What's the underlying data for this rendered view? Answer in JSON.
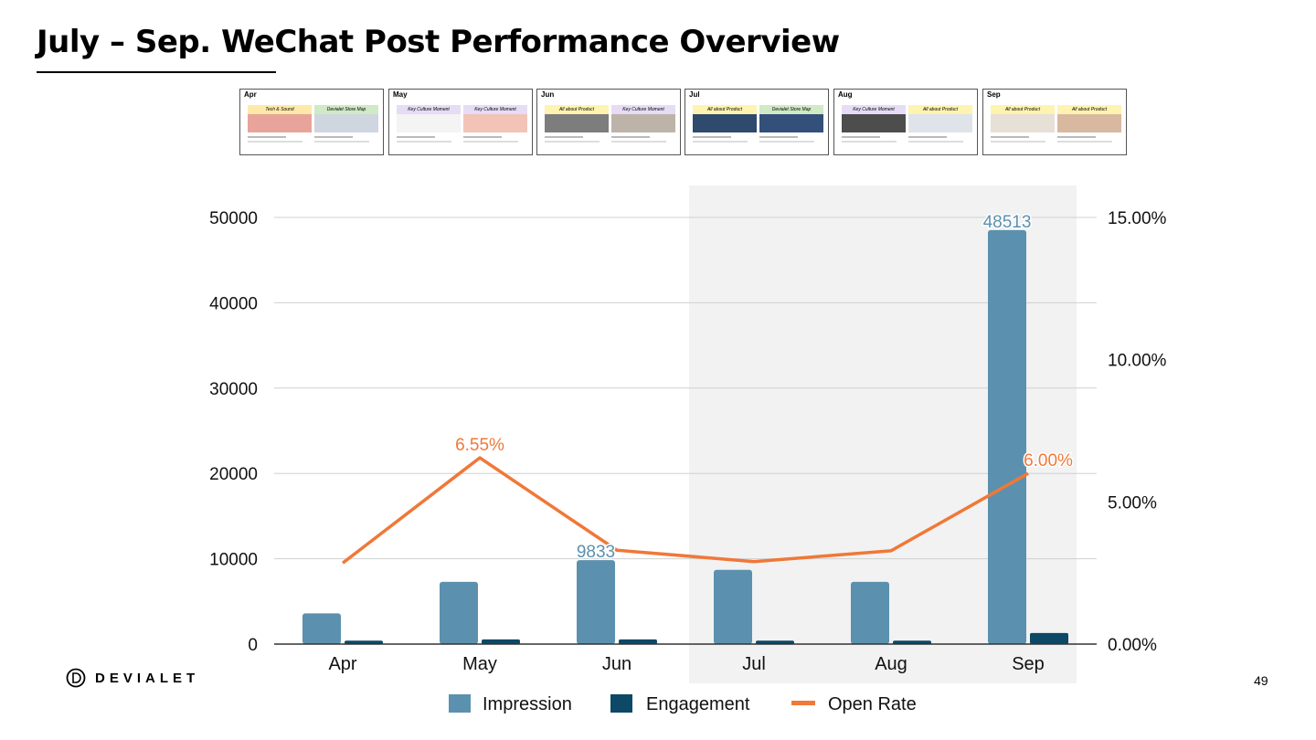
{
  "slide": {
    "title": "July – Sep. WeChat Post Performance Overview",
    "page_number": "49",
    "logo_text": "DEVIALET"
  },
  "thumbnails": [
    {
      "month": "Apr",
      "tags": [
        "Tech & Sound",
        "Devialet Store Map"
      ],
      "tag_colors": [
        "#ffe9a8",
        "#cfeac4"
      ]
    },
    {
      "month": "May",
      "tags": [
        "Key Culture Moment",
        "Key Culture Moment"
      ],
      "tag_colors": [
        "#e6dcf5",
        "#e6dcf5"
      ]
    },
    {
      "month": "Jun",
      "tags": [
        "All about Product",
        "Key Culture Moment"
      ],
      "tag_colors": [
        "#fff3b0",
        "#e6dcf5"
      ]
    },
    {
      "month": "Jul",
      "tags": [
        "All about Product",
        "Devialet Store Map"
      ],
      "tag_colors": [
        "#fff3b0",
        "#cfeac4"
      ]
    },
    {
      "month": "Aug",
      "tags": [
        "Key Culture Moment",
        "All about Product"
      ],
      "tag_colors": [
        "#e6dcf5",
        "#fff3b0"
      ]
    },
    {
      "month": "Sep",
      "tags": [
        "All about Product",
        "All about Product"
      ],
      "tag_colors": [
        "#fff3b0",
        "#fff3b0"
      ]
    }
  ],
  "chart_data": {
    "type": "bar",
    "categories": [
      "Apr",
      "May",
      "Jun",
      "Jul",
      "Aug",
      "Sep"
    ],
    "series": [
      {
        "name": "Impression",
        "kind": "bar",
        "axis": "left",
        "color": "#5b91ae",
        "values": [
          3600,
          7300,
          9833,
          8700,
          7300,
          48513
        ]
      },
      {
        "name": "Engagement",
        "kind": "bar",
        "axis": "left",
        "color": "#0d4866",
        "values": [
          400,
          550,
          550,
          400,
          400,
          1300
        ]
      },
      {
        "name": "Open Rate",
        "kind": "line",
        "axis": "right",
        "color": "#f07838",
        "values": [
          0.0285,
          0.0655,
          0.033,
          0.029,
          0.0328,
          0.06
        ]
      }
    ],
    "y_left": {
      "min": 0,
      "max": 50000,
      "ticks": [
        "0",
        "10000",
        "20000",
        "30000",
        "40000",
        "50000"
      ]
    },
    "y_right": {
      "min": 0,
      "max": 0.15,
      "ticks": [
        "0.00%",
        "5.00%",
        "10.00%",
        "15.00%"
      ]
    },
    "data_labels": [
      {
        "series": "Impression",
        "category": "Jun",
        "text": "9833"
      },
      {
        "series": "Impression",
        "category": "Sep",
        "text": "48513"
      },
      {
        "series": "Open Rate",
        "category": "May",
        "text": "6.55%"
      },
      {
        "series": "Open Rate",
        "category": "Sep",
        "text": "6.00%"
      }
    ],
    "highlight_range": [
      "Jul",
      "Sep"
    ],
    "highlight_color": "#f2f2f2",
    "grid": true,
    "legend_position": "bottom"
  }
}
